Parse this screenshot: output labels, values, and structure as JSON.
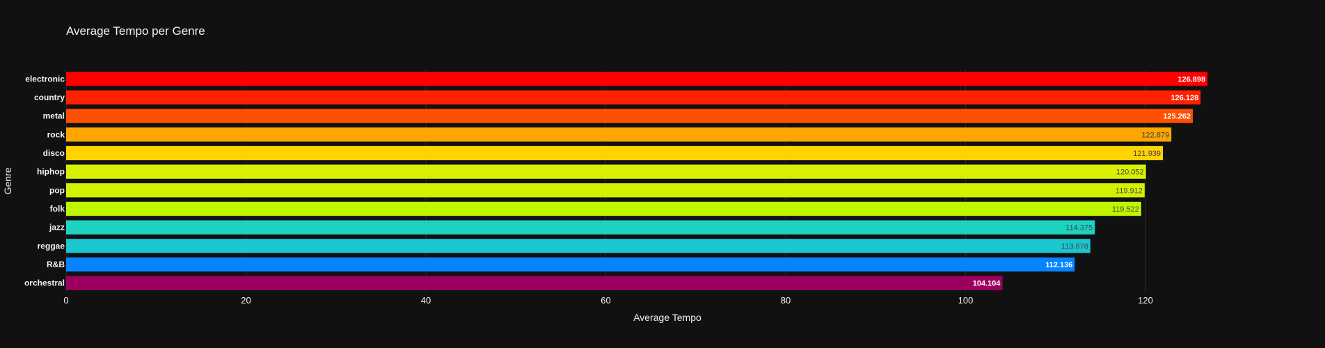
{
  "chart_data": {
    "type": "bar",
    "orientation": "horizontal",
    "title": "Average Tempo per Genre",
    "xlabel": "Average Tempo",
    "ylabel": "Genre",
    "xlim": [
      0,
      126.898
    ],
    "xticks": [
      0,
      20,
      40,
      60,
      80,
      100,
      120
    ],
    "grid": true,
    "categories": [
      "electronic",
      "country",
      "metal",
      "rock",
      "disco",
      "hiphop",
      "pop",
      "folk",
      "jazz",
      "reggae",
      "R&B",
      "orchestral"
    ],
    "values": [
      126.898,
      126.128,
      125.262,
      122.879,
      121.939,
      120.052,
      119.912,
      119.522,
      114.375,
      113.878,
      112.136,
      104.104
    ],
    "labels": [
      "126.898",
      "126.128",
      "125.262",
      "122.879",
      "121.939",
      "120.052",
      "119.912",
      "119.522",
      "114.375",
      "113.878",
      "112.136",
      "104.104"
    ],
    "colors": [
      "#ff0000",
      "#ff2200",
      "#ff4f00",
      "#ffa500",
      "#ffd300",
      "#d9f100",
      "#d3f200",
      "#bff500",
      "#1dd3c0",
      "#1ac6d0",
      "#0683ff",
      "#9b0060"
    ],
    "label_colors": [
      "#ffffff",
      "#ffffff",
      "#ffffff",
      "#444444",
      "#444444",
      "#444444",
      "#444444",
      "#444444",
      "#444444",
      "#444444",
      "#ffffff",
      "#ffffff"
    ]
  }
}
